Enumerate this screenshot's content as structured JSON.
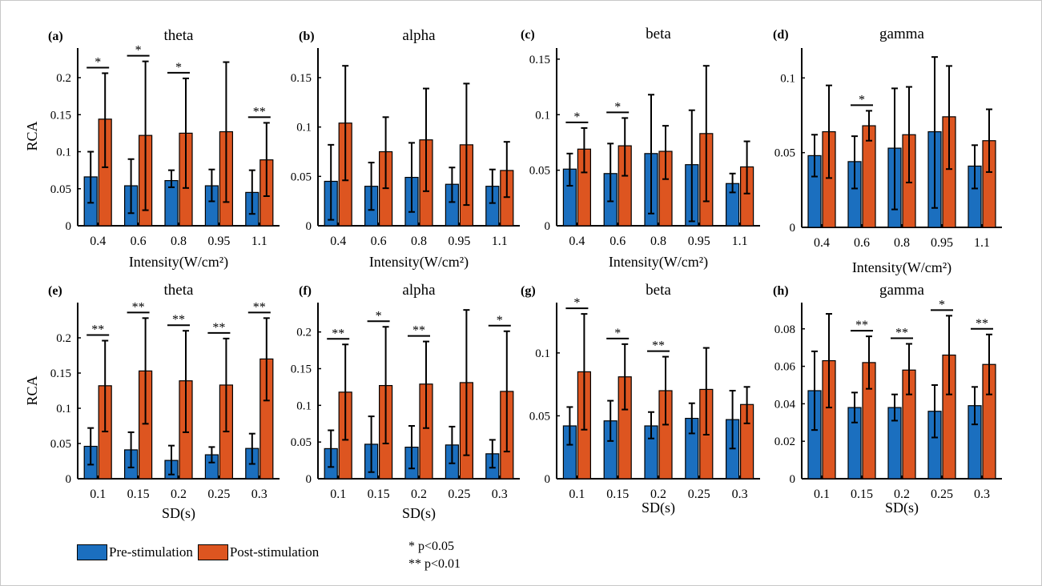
{
  "colors": {
    "pre": "#1b6fbf",
    "post": "#dd5520",
    "axis": "#000000"
  },
  "legend": {
    "pre_label": "Pre-stimulation",
    "post_label": "Post-stimulation"
  },
  "significance_note": {
    "line1": "* p<0.05",
    "line2": "** p<0.01"
  },
  "chart_data": [
    {
      "type": "bar",
      "panel": "(a)",
      "title": "theta",
      "xlabel": "Intensity(W/cm²)",
      "ylabel": "RCA",
      "categories": [
        "0.4",
        "0.6",
        "0.8",
        "0.95",
        "1.1"
      ],
      "ylim": [
        0,
        0.24
      ],
      "yticks": [
        0,
        0.05,
        0.1,
        0.15,
        0.2
      ],
      "ytick_labels": [
        "0",
        "0.05",
        "0.1",
        "0.15",
        "0.2"
      ],
      "series": [
        {
          "name": "Pre-stimulation",
          "values": [
            0.066,
            0.054,
            0.061,
            0.054,
            0.045
          ],
          "err_low": [
            0.031,
            0.017,
            0.052,
            0.033,
            0.016
          ],
          "err_high": [
            0.1,
            0.09,
            0.075,
            0.076,
            0.075
          ]
        },
        {
          "name": "Post-stimulation",
          "values": [
            0.144,
            0.122,
            0.125,
            0.127,
            0.089
          ],
          "err_low": [
            0.079,
            0.021,
            0.051,
            0.032,
            0.04
          ],
          "err_high": [
            0.206,
            0.222,
            0.199,
            0.221,
            0.139
          ]
        }
      ],
      "significance": [
        "*",
        "*",
        "*",
        "",
        "**"
      ]
    },
    {
      "type": "bar",
      "panel": "(b)",
      "title": "alpha",
      "xlabel": "Intensity(W/cm²)",
      "ylabel": "",
      "categories": [
        "0.4",
        "0.6",
        "0.8",
        "0.95",
        "1.1"
      ],
      "ylim": [
        0,
        0.18
      ],
      "yticks": [
        0,
        0.05,
        0.1,
        0.15
      ],
      "ytick_labels": [
        "0",
        "0.05",
        "0.1",
        "0.15"
      ],
      "series": [
        {
          "name": "Pre-stimulation",
          "values": [
            0.045,
            0.04,
            0.049,
            0.042,
            0.04
          ],
          "err_low": [
            0.006,
            0.016,
            0.014,
            0.024,
            0.023
          ],
          "err_high": [
            0.082,
            0.064,
            0.084,
            0.059,
            0.057
          ]
        },
        {
          "name": "Post-stimulation",
          "values": [
            0.104,
            0.075,
            0.087,
            0.082,
            0.056
          ],
          "err_low": [
            0.046,
            0.038,
            0.035,
            0.021,
            0.029
          ],
          "err_high": [
            0.162,
            0.11,
            0.139,
            0.144,
            0.085
          ]
        }
      ],
      "significance": [
        "",
        "",
        "",
        "",
        ""
      ]
    },
    {
      "type": "bar",
      "panel": "(c)",
      "title": "beta",
      "xlabel": "Intensity(W/cm²)",
      "ylabel": "",
      "categories": [
        "0.4",
        "0.6",
        "0.8",
        "0.95",
        "1.1"
      ],
      "ylim": [
        0,
        0.16
      ],
      "yticks": [
        0,
        0.05,
        0.1,
        0.15
      ],
      "ytick_labels": [
        "0",
        "0.05",
        "0.1",
        "0.15"
      ],
      "series": [
        {
          "name": "Pre-stimulation",
          "values": [
            0.051,
            0.047,
            0.065,
            0.055,
            0.038
          ],
          "err_low": [
            0.036,
            0.022,
            0.011,
            0.004,
            0.03
          ],
          "err_high": [
            0.065,
            0.074,
            0.118,
            0.104,
            0.047
          ]
        },
        {
          "name": "Post-stimulation",
          "values": [
            0.069,
            0.072,
            0.067,
            0.083,
            0.053
          ],
          "err_low": [
            0.048,
            0.045,
            0.042,
            0.022,
            0.029
          ],
          "err_high": [
            0.088,
            0.097,
            0.09,
            0.144,
            0.076
          ]
        }
      ],
      "significance": [
        "*",
        "*",
        "",
        "",
        ""
      ]
    },
    {
      "type": "bar",
      "panel": "(d)",
      "title": "gamma",
      "xlabel": "Intensity(W/cm²)",
      "ylabel": "",
      "categories": [
        "0.4",
        "0.6",
        "0.8",
        "0.95",
        "1.1"
      ],
      "ylim": [
        0,
        0.12
      ],
      "yticks": [
        0,
        0.05,
        0.1
      ],
      "ytick_labels": [
        "0",
        "0.05",
        "0.1"
      ],
      "series": [
        {
          "name": "Pre-stimulation",
          "values": [
            0.048,
            0.044,
            0.053,
            0.064,
            0.041
          ],
          "err_low": [
            0.034,
            0.026,
            0.012,
            0.013,
            0.026
          ],
          "err_high": [
            0.062,
            0.061,
            0.093,
            0.114,
            0.055
          ]
        },
        {
          "name": "Post-stimulation",
          "values": [
            0.064,
            0.068,
            0.062,
            0.074,
            0.058
          ],
          "err_low": [
            0.033,
            0.058,
            0.03,
            0.039,
            0.037
          ],
          "err_high": [
            0.095,
            0.078,
            0.094,
            0.108,
            0.079
          ]
        }
      ],
      "significance": [
        "",
        "*",
        "",
        "",
        ""
      ]
    },
    {
      "type": "bar",
      "panel": "(e)",
      "title": "theta",
      "xlabel": "SD(s)",
      "ylabel": "RCA",
      "categories": [
        "0.1",
        "0.15",
        "0.2",
        "0.25",
        "0.3"
      ],
      "ylim": [
        0,
        0.25
      ],
      "yticks": [
        0,
        0.05,
        0.1,
        0.15,
        0.2
      ],
      "ytick_labels": [
        "0",
        "0.05",
        "0.1",
        "0.15",
        "0.2"
      ],
      "series": [
        {
          "name": "Pre-stimulation",
          "values": [
            0.046,
            0.041,
            0.026,
            0.034,
            0.043
          ],
          "err_low": [
            0.02,
            0.016,
            0.006,
            0.023,
            0.021
          ],
          "err_high": [
            0.072,
            0.066,
            0.047,
            0.045,
            0.064
          ]
        },
        {
          "name": "Post-stimulation",
          "values": [
            0.132,
            0.153,
            0.139,
            0.133,
            0.17
          ],
          "err_low": [
            0.067,
            0.078,
            0.066,
            0.067,
            0.111
          ],
          "err_high": [
            0.196,
            0.228,
            0.21,
            0.199,
            0.228
          ]
        }
      ],
      "significance": [
        "**",
        "**",
        "**",
        "**",
        "**"
      ]
    },
    {
      "type": "bar",
      "panel": "(f)",
      "title": "alpha",
      "xlabel": "SD(s)",
      "ylabel": "",
      "categories": [
        "0.1",
        "0.15",
        "0.2",
        "0.25",
        "0.3"
      ],
      "ylim": [
        0,
        0.24
      ],
      "yticks": [
        0,
        0.05,
        0.1,
        0.15,
        0.2
      ],
      "ytick_labels": [
        "0",
        "0.05",
        "0.1",
        "0.15",
        "0.2"
      ],
      "series": [
        {
          "name": "Pre-stimulation",
          "values": [
            0.041,
            0.047,
            0.043,
            0.046,
            0.034
          ],
          "err_low": [
            0.016,
            0.009,
            0.014,
            0.021,
            0.015
          ],
          "err_high": [
            0.066,
            0.085,
            0.072,
            0.071,
            0.053
          ]
        },
        {
          "name": "Post-stimulation",
          "values": [
            0.118,
            0.127,
            0.129,
            0.131,
            0.119
          ],
          "err_low": [
            0.053,
            0.048,
            0.069,
            0.032,
            0.037
          ],
          "err_high": [
            0.183,
            0.207,
            0.187,
            0.23,
            0.201
          ]
        }
      ],
      "significance": [
        "**",
        "*",
        "**",
        "",
        "*"
      ]
    },
    {
      "type": "bar",
      "panel": "(g)",
      "title": "beta",
      "xlabel": "SD(s)",
      "ylabel": "",
      "categories": [
        "0.1",
        "0.15",
        "0.2",
        "0.25",
        "0.3"
      ],
      "ylim": [
        0,
        0.14
      ],
      "yticks": [
        0,
        0.05,
        0.1
      ],
      "ytick_labels": [
        "0",
        "0.05",
        "0.1"
      ],
      "series": [
        {
          "name": "Pre-stimulation",
          "values": [
            0.042,
            0.046,
            0.042,
            0.048,
            0.047
          ],
          "err_low": [
            0.027,
            0.03,
            0.032,
            0.036,
            0.024
          ],
          "err_high": [
            0.057,
            0.062,
            0.053,
            0.06,
            0.07
          ]
        },
        {
          "name": "Post-stimulation",
          "values": [
            0.085,
            0.081,
            0.07,
            0.071,
            0.059
          ],
          "err_low": [
            0.039,
            0.055,
            0.043,
            0.035,
            0.044
          ],
          "err_high": [
            0.131,
            0.107,
            0.097,
            0.104,
            0.073
          ]
        }
      ],
      "significance": [
        "*",
        "*",
        "**",
        "",
        ""
      ]
    },
    {
      "type": "bar",
      "panel": "(h)",
      "title": "gamma",
      "xlabel": "SD(s)",
      "ylabel": "",
      "categories": [
        "0.1",
        "0.15",
        "0.2",
        "0.25",
        "0.3"
      ],
      "ylim": [
        0,
        0.094
      ],
      "yticks": [
        0,
        0.02,
        0.04,
        0.06,
        0.08
      ],
      "ytick_labels": [
        "0",
        "0.02",
        "0.04",
        "0.06",
        "0.08"
      ],
      "series": [
        {
          "name": "Pre-stimulation",
          "values": [
            0.047,
            0.038,
            0.038,
            0.036,
            0.039
          ],
          "err_low": [
            0.026,
            0.03,
            0.031,
            0.022,
            0.029
          ],
          "err_high": [
            0.068,
            0.046,
            0.045,
            0.05,
            0.049
          ]
        },
        {
          "name": "Post-stimulation",
          "values": [
            0.063,
            0.062,
            0.058,
            0.066,
            0.061
          ],
          "err_low": [
            0.038,
            0.048,
            0.045,
            0.045,
            0.045
          ],
          "err_high": [
            0.088,
            0.076,
            0.072,
            0.087,
            0.077
          ]
        }
      ],
      "significance": [
        "",
        "**",
        "**",
        "*",
        "**"
      ]
    }
  ]
}
